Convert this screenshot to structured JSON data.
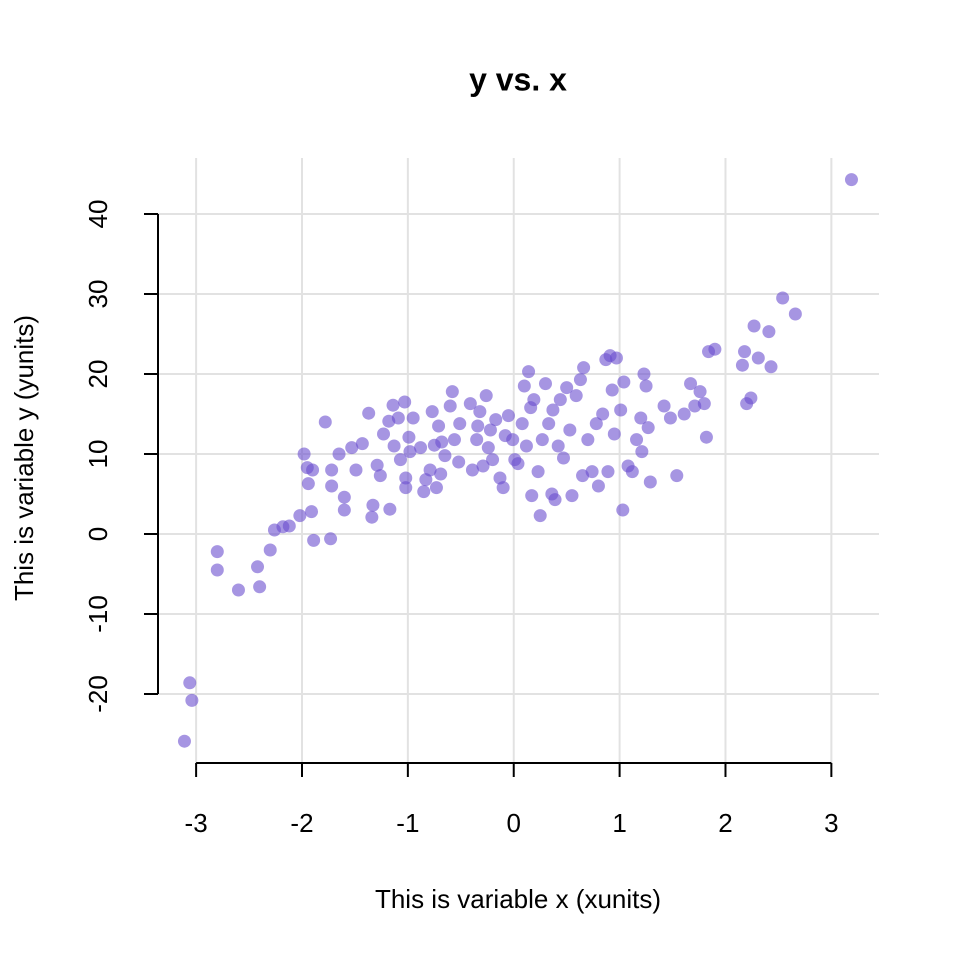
{
  "chart_data": {
    "type": "scatter",
    "title": "y vs. x",
    "x_label": "This is variable x (xunits)",
    "y_label": "This is variable y (yunits)",
    "color": "#6a4fcf",
    "grid": true,
    "xlim": [
      -3.36,
      3.45
    ],
    "ylim": [
      -29.5,
      47
    ],
    "xticks": [
      -3,
      -2,
      -1,
      0,
      1,
      2,
      3
    ],
    "yticks": [
      -20,
      -10,
      0,
      10,
      20,
      30,
      40
    ],
    "x": [
      3.19,
      -3.11,
      -3.06,
      -3.04,
      -2.8,
      -2.8,
      -2.6,
      -2.42,
      -2.4,
      -2.3,
      -2.26,
      -2.18,
      -2.12,
      -2.02,
      -1.98,
      -1.95,
      -1.94,
      -1.91,
      -1.89,
      -1.9,
      -1.78,
      -1.73,
      -1.72,
      -1.72,
      -1.65,
      -1.6,
      -1.6,
      -1.53,
      -1.49,
      -1.43,
      -1.37,
      -1.34,
      -1.33,
      -1.29,
      -1.26,
      -1.23,
      -1.18,
      -1.17,
      -1.14,
      -1.13,
      -1.09,
      -1.07,
      -1.03,
      -1.02,
      -1.02,
      -0.99,
      -0.98,
      -0.95,
      -0.88,
      -0.85,
      -0.83,
      -0.79,
      -0.77,
      -0.75,
      -0.73,
      -0.71,
      -0.69,
      -0.68,
      -0.65,
      -0.6,
      -0.58,
      -0.56,
      -0.52,
      -0.51,
      -0.41,
      -0.39,
      -0.35,
      -0.34,
      -0.32,
      -0.29,
      -0.26,
      -0.24,
      -0.22,
      -0.2,
      -0.17,
      -0.13,
      -0.1,
      -0.08,
      -0.05,
      -0.01,
      0.01,
      0.04,
      0.08,
      0.1,
      0.12,
      0.14,
      0.16,
      0.17,
      0.19,
      0.23,
      0.25,
      0.27,
      0.3,
      0.33,
      0.36,
      0.37,
      0.39,
      0.42,
      0.44,
      0.47,
      0.5,
      0.53,
      0.55,
      0.59,
      0.63,
      0.65,
      0.66,
      0.7,
      0.74,
      0.78,
      0.8,
      0.84,
      0.87,
      0.89,
      0.91,
      0.93,
      0.95,
      0.97,
      1.01,
      1.03,
      1.04,
      1.08,
      1.12,
      1.16,
      1.2,
      1.21,
      1.23,
      1.25,
      1.27,
      1.29,
      1.42,
      1.48,
      1.54,
      1.61,
      1.67,
      1.71,
      1.76,
      1.8,
      1.82,
      1.84,
      1.9,
      2.16,
      2.18,
      2.2,
      2.24,
      2.27,
      2.31,
      2.41,
      2.43,
      2.54,
      2.66
    ],
    "values": [
      44.3,
      -25.9,
      -18.6,
      -20.8,
      -2.2,
      -4.5,
      -7.0,
      -4.1,
      -6.6,
      -2.0,
      0.5,
      0.9,
      1.0,
      2.3,
      10.0,
      8.3,
      6.3,
      2.8,
      -0.8,
      8.0,
      14.0,
      -0.6,
      8.0,
      6.0,
      10.0,
      4.6,
      3.0,
      10.8,
      8.0,
      11.3,
      15.1,
      2.1,
      3.6,
      8.6,
      7.3,
      12.5,
      14.1,
      3.1,
      16.1,
      11.0,
      14.5,
      9.3,
      16.5,
      5.8,
      7.0,
      12.1,
      10.3,
      14.5,
      10.8,
      5.3,
      6.8,
      8.0,
      15.3,
      11.1,
      5.8,
      13.5,
      7.5,
      11.5,
      9.8,
      16.0,
      17.8,
      11.8,
      9.0,
      13.8,
      16.3,
      8.0,
      11.8,
      13.5,
      15.3,
      8.5,
      17.3,
      10.8,
      13.0,
      9.3,
      14.3,
      7.0,
      5.8,
      12.3,
      14.8,
      11.8,
      9.3,
      8.8,
      13.8,
      18.5,
      11.0,
      20.3,
      15.8,
      4.8,
      16.8,
      7.8,
      2.3,
      11.8,
      18.8,
      13.8,
      5.0,
      15.5,
      4.3,
      11.0,
      16.8,
      9.5,
      18.3,
      13.0,
      4.8,
      17.3,
      19.3,
      7.3,
      20.8,
      11.8,
      7.8,
      13.8,
      6.0,
      15.0,
      21.8,
      7.8,
      22.3,
      18.0,
      12.5,
      22.0,
      15.5,
      3.0,
      19.0,
      8.5,
      7.8,
      11.8,
      14.5,
      10.3,
      20.0,
      18.5,
      13.3,
      6.5,
      16.0,
      14.5,
      7.3,
      15.0,
      18.8,
      16.0,
      17.8,
      16.3,
      12.1,
      22.8,
      23.1,
      21.1,
      22.8,
      16.3,
      17.0,
      26.0,
      22.0,
      25.3,
      20.9,
      29.5,
      27.5
    ]
  }
}
